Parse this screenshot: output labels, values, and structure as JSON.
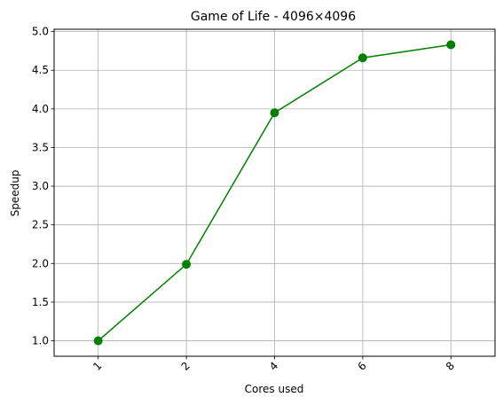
{
  "chart_data": {
    "type": "line",
    "title": "Game of Life - 4096×4096",
    "xlabel": "Cores used",
    "ylabel": "Speedup",
    "categories": [
      "1",
      "2",
      "4",
      "6",
      "8"
    ],
    "series": [
      {
        "values": [
          1.0,
          1.99,
          3.95,
          4.66,
          4.83
        ],
        "color": "#008000",
        "marker": "circle"
      }
    ],
    "yticks": [
      1.0,
      1.5,
      2.0,
      2.5,
      3.0,
      3.5,
      4.0,
      4.5,
      5.0
    ],
    "ytick_labels": [
      "1.0",
      "1.5",
      "2.0",
      "2.5",
      "3.0",
      "3.5",
      "4.0",
      "4.5",
      "5.0"
    ],
    "ylim": [
      0.8,
      5.03
    ],
    "xtick_rotation": "45 degrees",
    "grid": true,
    "grid_color": "#b0b0b0",
    "legend": "none"
  }
}
